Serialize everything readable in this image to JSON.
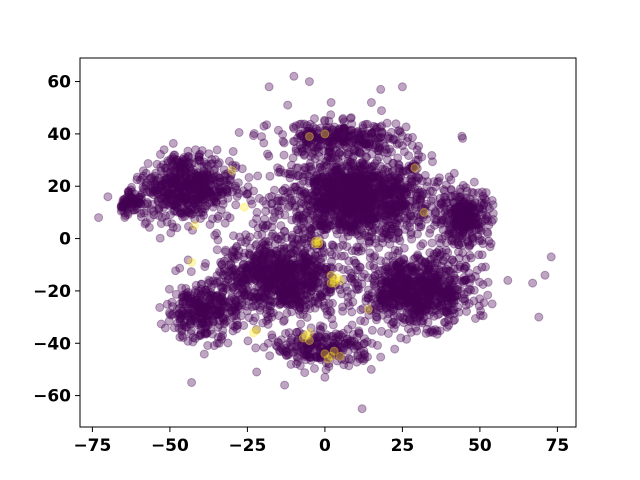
{
  "chart_data": {
    "type": "scatter",
    "title": "",
    "xlabel": "",
    "ylabel": "",
    "xlim": [
      -79,
      81
    ],
    "ylim": [
      -72,
      69
    ],
    "grid": false,
    "legend": "none",
    "colors": {
      "background_class": "#440154",
      "highlight_class": "#fde725"
    },
    "marker_alpha": 0.35,
    "x_ticks": [
      -75,
      -50,
      -25,
      0,
      25,
      50,
      75
    ],
    "x_tick_labels": [
      "−75",
      "−50",
      "−25",
      "0",
      "25",
      "50",
      "75"
    ],
    "y_ticks": [
      -60,
      -40,
      -20,
      0,
      20,
      40,
      60
    ],
    "y_tick_labels": [
      "−60",
      "−40",
      "−20",
      "0",
      "20",
      "40",
      "60"
    ],
    "clusters": [
      {
        "class": 0,
        "cx": 10,
        "cy": 15,
        "sx": 22,
        "sy": 15,
        "n": 1400
      },
      {
        "class": 0,
        "cx": -45,
        "cy": 20,
        "sx": 14,
        "sy": 12,
        "n": 600
      },
      {
        "class": 0,
        "cx": -65,
        "cy": 15,
        "sx": 5,
        "sy": 5,
        "n": 150
      },
      {
        "class": 0,
        "cx": -15,
        "cy": -15,
        "sx": 18,
        "sy": 14,
        "n": 900
      },
      {
        "class": 0,
        "cx": 30,
        "cy": -20,
        "sx": 16,
        "sy": 12,
        "n": 800
      },
      {
        "class": 0,
        "cx": -40,
        "cy": -28,
        "sx": 10,
        "sy": 10,
        "n": 300
      },
      {
        "class": 0,
        "cx": 45,
        "cy": 8,
        "sx": 8,
        "sy": 10,
        "n": 300
      },
      {
        "class": 0,
        "cx": 0,
        "cy": -42,
        "sx": 15,
        "sy": 6,
        "n": 250
      },
      {
        "class": 0,
        "cx": 5,
        "cy": 38,
        "sx": 20,
        "sy": 6,
        "n": 300
      }
    ],
    "points": [
      {
        "x": -10,
        "y": 62,
        "class": 0
      },
      {
        "x": -5,
        "y": 60,
        "class": 0
      },
      {
        "x": -18,
        "y": 58,
        "class": 0
      },
      {
        "x": 18,
        "y": 57,
        "class": 0
      },
      {
        "x": 25,
        "y": 58,
        "class": 0
      },
      {
        "x": 2,
        "y": 52,
        "class": 0
      },
      {
        "x": 15,
        "y": 52,
        "class": 0
      },
      {
        "x": -12,
        "y": 51,
        "class": 0
      },
      {
        "x": 73,
        "y": -7,
        "class": 0
      },
      {
        "x": 71,
        "y": -14,
        "class": 0
      },
      {
        "x": 67,
        "y": -17,
        "class": 0
      },
      {
        "x": 69,
        "y": -30,
        "class": 0
      },
      {
        "x": 59,
        "y": -16,
        "class": 0
      },
      {
        "x": -43,
        "y": -55,
        "class": 0
      },
      {
        "x": 12,
        "y": -65,
        "class": 0
      },
      {
        "x": -22,
        "y": -51,
        "class": 0
      },
      {
        "x": -13,
        "y": -56,
        "class": 0
      },
      {
        "x": 0,
        "y": -53,
        "class": 0
      },
      {
        "x": -73,
        "y": 8,
        "class": 0
      },
      {
        "x": -70,
        "y": 16,
        "class": 0
      },
      {
        "x": -3,
        "y": -2,
        "class": 1
      },
      {
        "x": -2,
        "y": -1,
        "class": 1
      },
      {
        "x": -3,
        "y": -1,
        "class": 1
      },
      {
        "x": 2,
        "y": -14,
        "class": 1
      },
      {
        "x": 3,
        "y": -16,
        "class": 1
      },
      {
        "x": 4,
        "y": -15,
        "class": 1
      },
      {
        "x": 2,
        "y": -17,
        "class": 1
      },
      {
        "x": 5,
        "y": -16,
        "class": 1
      },
      {
        "x": -6,
        "y": -37,
        "class": 1
      },
      {
        "x": -5,
        "y": -39,
        "class": 1
      },
      {
        "x": -7,
        "y": -38,
        "class": 1
      },
      {
        "x": -5,
        "y": -36,
        "class": 1
      },
      {
        "x": 0,
        "y": -44,
        "class": 1
      },
      {
        "x": 2,
        "y": -45,
        "class": 1
      },
      {
        "x": 3,
        "y": -43,
        "class": 1
      },
      {
        "x": 1,
        "y": -46,
        "class": 1
      },
      {
        "x": 5,
        "y": -45,
        "class": 1
      },
      {
        "x": -23,
        "y": -36,
        "class": 1
      },
      {
        "x": -22,
        "y": -35,
        "class": 1
      },
      {
        "x": -30,
        "y": 26,
        "class": 1
      },
      {
        "x": -26,
        "y": 12,
        "class": 1
      },
      {
        "x": -42,
        "y": 5,
        "class": 1
      },
      {
        "x": -43,
        "y": -9,
        "class": 1
      },
      {
        "x": 0,
        "y": 40,
        "class": 1
      },
      {
        "x": -5,
        "y": 39,
        "class": 1
      },
      {
        "x": 29,
        "y": 27,
        "class": 1
      },
      {
        "x": 32,
        "y": 10,
        "class": 1
      },
      {
        "x": 14,
        "y": -27,
        "class": 1
      },
      {
        "x": 3,
        "y": -17,
        "class": 1
      },
      {
        "x": -2,
        "y": -2,
        "class": 1
      }
    ]
  }
}
